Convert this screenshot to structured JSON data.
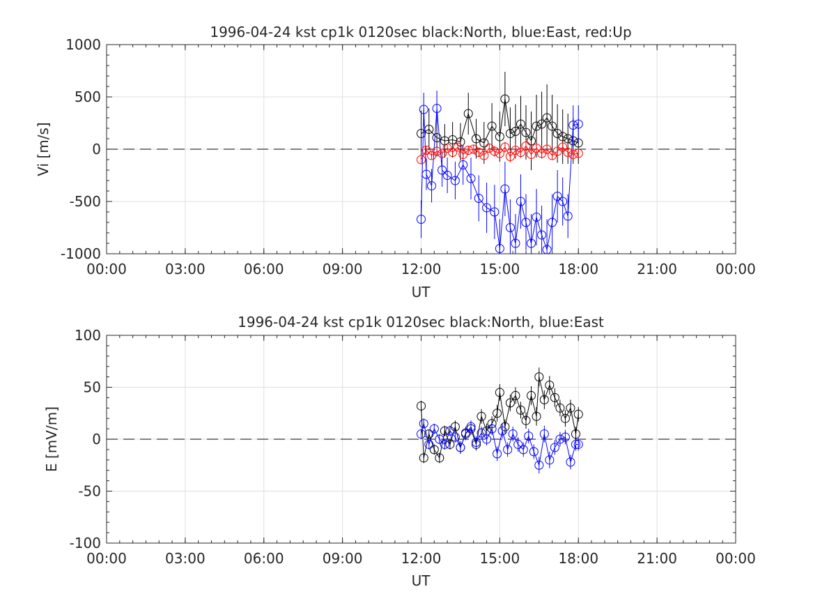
{
  "chart_data": [
    {
      "type": "scatter",
      "title": "1996-04-24 kst cp1k 0120sec black:North, blue:East, red:Up",
      "xlabel": "UT",
      "ylabel": "Vi [m/s]",
      "xlim": [
        "00:00",
        "24:00"
      ],
      "ylim": [
        -1000,
        1000
      ],
      "x_ticks": [
        "00:00",
        "03:00",
        "06:00",
        "09:00",
        "12:00",
        "15:00",
        "18:00",
        "21:00",
        "00:00"
      ],
      "y_ticks": [
        1000,
        500,
        0,
        -500,
        -1000
      ],
      "grid": true,
      "reference_line": 0,
      "series": [
        {
          "name": "North",
          "color": "#000000",
          "marker": "circle",
          "x": [
            "12:00",
            "12:18",
            "12:36",
            "12:54",
            "13:12",
            "13:30",
            "13:48",
            "14:06",
            "14:24",
            "14:42",
            "15:00",
            "15:12",
            "15:24",
            "15:36",
            "15:48",
            "16:00",
            "16:12",
            "16:24",
            "16:36",
            "16:48",
            "17:00",
            "17:12",
            "17:24",
            "17:36",
            "17:48",
            "18:00"
          ],
          "y": [
            150,
            190,
            110,
            80,
            90,
            70,
            340,
            100,
            60,
            220,
            120,
            480,
            150,
            170,
            240,
            160,
            80,
            220,
            240,
            300,
            220,
            150,
            120,
            100,
            80,
            60
          ],
          "error": [
            220,
            200,
            180,
            160,
            170,
            180,
            200,
            190,
            200,
            220,
            240,
            260,
            250,
            260,
            270,
            260,
            280,
            300,
            310,
            320,
            300,
            280,
            260,
            240,
            220,
            200
          ]
        },
        {
          "name": "East",
          "color": "#0000ff",
          "marker": "circle",
          "x": [
            "12:00",
            "12:06",
            "12:12",
            "12:24",
            "12:36",
            "12:48",
            "13:00",
            "13:18",
            "13:36",
            "13:54",
            "14:12",
            "14:30",
            "14:48",
            "15:00",
            "15:12",
            "15:24",
            "15:36",
            "15:48",
            "16:00",
            "16:12",
            "16:24",
            "16:36",
            "16:48",
            "17:00",
            "17:12",
            "17:24",
            "17:36",
            "17:48",
            "18:00"
          ],
          "y": [
            -670,
            380,
            -240,
            -350,
            390,
            -200,
            -250,
            -300,
            -150,
            -280,
            -470,
            -560,
            -600,
            -950,
            -380,
            -750,
            -900,
            -500,
            -700,
            -900,
            -650,
            -820,
            -960,
            -700,
            -450,
            -500,
            -640,
            230,
            240
          ],
          "error": [
            180,
            160,
            150,
            160,
            170,
            160,
            170,
            180,
            190,
            200,
            220,
            240,
            260,
            280,
            260,
            270,
            280,
            260,
            270,
            280,
            270,
            280,
            290,
            270,
            250,
            230,
            210,
            190,
            180
          ]
        },
        {
          "name": "Up",
          "color": "#ff0000",
          "marker": "circle",
          "x": [
            "12:00",
            "12:12",
            "12:24",
            "12:36",
            "12:48",
            "13:00",
            "13:12",
            "13:24",
            "13:36",
            "13:48",
            "14:00",
            "14:12",
            "14:24",
            "14:36",
            "14:48",
            "15:00",
            "15:12",
            "15:24",
            "15:36",
            "15:48",
            "16:00",
            "16:12",
            "16:24",
            "16:36",
            "16:48",
            "17:00",
            "17:12",
            "17:24",
            "17:36",
            "17:48",
            "18:00"
          ],
          "y": [
            -100,
            -10,
            -60,
            -20,
            -40,
            10,
            -30,
            20,
            -50,
            -10,
            0,
            -30,
            -60,
            10,
            -20,
            -40,
            20,
            -70,
            -10,
            -30,
            30,
            -50,
            10,
            -40,
            0,
            -60,
            -20,
            20,
            -30,
            -50,
            -40
          ],
          "error": [
            40,
            35,
            35,
            30,
            30,
            30,
            35,
            35,
            40,
            40,
            40,
            45,
            45,
            45,
            50,
            50,
            50,
            55,
            55,
            55,
            55,
            55,
            50,
            50,
            50,
            45,
            45,
            45,
            40,
            40,
            40
          ]
        }
      ]
    },
    {
      "type": "scatter",
      "title": "1996-04-24 kst cp1k 0120sec black:North, blue:East",
      "xlabel": "UT",
      "ylabel": "E [mV/m]",
      "xlim": [
        "00:00",
        "24:00"
      ],
      "ylim": [
        -100,
        100
      ],
      "x_ticks": [
        "00:00",
        "03:00",
        "06:00",
        "09:00",
        "12:00",
        "15:00",
        "18:00",
        "21:00",
        "00:00"
      ],
      "y_ticks": [
        100,
        50,
        0,
        -50,
        -100
      ],
      "grid": true,
      "reference_line": 0,
      "series": [
        {
          "name": "North",
          "color": "#000000",
          "marker": "circle",
          "x": [
            "12:00",
            "12:06",
            "12:18",
            "12:30",
            "12:42",
            "12:54",
            "13:06",
            "13:18",
            "13:30",
            "13:42",
            "13:54",
            "14:06",
            "14:18",
            "14:30",
            "14:42",
            "14:54",
            "15:00",
            "15:12",
            "15:24",
            "15:36",
            "15:48",
            "16:00",
            "16:12",
            "16:24",
            "16:30",
            "16:42",
            "16:54",
            "17:06",
            "17:18",
            "17:30",
            "17:42",
            "17:54",
            "18:00"
          ],
          "y": [
            32,
            -18,
            5,
            -10,
            -18,
            8,
            -5,
            12,
            -8,
            6,
            10,
            -5,
            22,
            8,
            15,
            25,
            45,
            12,
            35,
            42,
            28,
            18,
            42,
            22,
            60,
            38,
            52,
            40,
            30,
            20,
            30,
            5,
            24
          ],
          "error": [
            5,
            5,
            4,
            5,
            5,
            5,
            5,
            6,
            6,
            6,
            6,
            6,
            7,
            7,
            7,
            8,
            8,
            7,
            8,
            8,
            8,
            8,
            9,
            9,
            9,
            9,
            9,
            9,
            8,
            8,
            8,
            7,
            7
          ]
        },
        {
          "name": "East",
          "color": "#0000ff",
          "marker": "circle",
          "x": [
            "12:00",
            "12:06",
            "12:18",
            "12:30",
            "12:42",
            "12:54",
            "13:06",
            "13:18",
            "13:30",
            "13:42",
            "13:54",
            "14:06",
            "14:18",
            "14:30",
            "14:42",
            "14:54",
            "15:06",
            "15:18",
            "15:30",
            "15:42",
            "15:54",
            "16:06",
            "16:18",
            "16:30",
            "16:42",
            "16:54",
            "17:06",
            "17:18",
            "17:30",
            "17:42",
            "17:54",
            "18:00"
          ],
          "y": [
            5,
            15,
            -5,
            10,
            0,
            -5,
            8,
            2,
            -8,
            5,
            12,
            -3,
            6,
            0,
            10,
            -14,
            8,
            -10,
            5,
            -5,
            -10,
            3,
            -12,
            -25,
            5,
            -20,
            -8,
            0,
            2,
            -22,
            -5,
            -5
          ],
          "error": [
            5,
            5,
            5,
            5,
            5,
            5,
            5,
            5,
            6,
            6,
            6,
            6,
            6,
            6,
            6,
            7,
            7,
            7,
            7,
            7,
            7,
            7,
            7,
            8,
            8,
            8,
            7,
            7,
            7,
            7,
            6,
            6
          ]
        }
      ]
    }
  ]
}
